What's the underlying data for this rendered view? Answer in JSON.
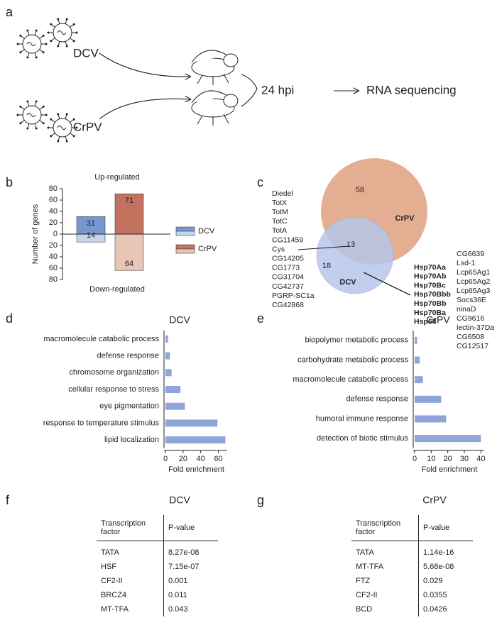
{
  "panel_labels": [
    "a",
    "b",
    "c",
    "d",
    "e",
    "f",
    "g"
  ],
  "schematic": {
    "viruses": [
      "DCV",
      "CrPV"
    ],
    "timepoint": "24 hpi",
    "method": "RNA sequencing"
  },
  "chart_data": [
    {
      "type": "diverging-bar",
      "ylabel": "Number of genes",
      "categories": [
        "Up-regulated",
        "Down-regulated"
      ],
      "series": [
        {
          "name": "DCV",
          "colors": [
            "#7797d0",
            "#c7d4ee"
          ],
          "values": [
            31,
            -14
          ],
          "value_labels": [
            "31",
            "14"
          ]
        },
        {
          "name": "CrPV",
          "colors": [
            "#c2735f",
            "#e9c5b5"
          ],
          "values": [
            71,
            -64
          ],
          "value_labels": [
            "71",
            "64"
          ]
        }
      ],
      "ylim": [
        -80,
        80
      ],
      "yticks": [
        80,
        60,
        40,
        20,
        0,
        {
          "value": -20,
          "label": "20"
        },
        {
          "value": -40,
          "label": "40"
        },
        {
          "value": -60,
          "label": "60"
        },
        {
          "value": -80,
          "label": "80"
        }
      ],
      "legend": "right"
    },
    {
      "type": "hbar",
      "title": "DCV",
      "xlabel": "Fold enrichment",
      "color": "#8fa5d9",
      "categories": [
        "macromolecule catabolic process",
        "defense response",
        "chromosome organization",
        "cellular response to stress",
        "eye pigmentation",
        "response to temperature stimulus",
        "lipid localization"
      ],
      "values": [
        3,
        5,
        7,
        17,
        22,
        59,
        68
      ],
      "xlim": [
        0,
        70
      ],
      "xticks": [
        0,
        20,
        40,
        60
      ]
    },
    {
      "type": "hbar",
      "title": "CrPV",
      "xlabel": "Fold enrichment",
      "color": "#8fa5d9",
      "categories": [
        "biopolymer metabolic process",
        "carbohydrate metabolic process",
        "macromolecule catabolic process",
        "defense response",
        "humoral immune response",
        "detection of biotic stimulus"
      ],
      "values": [
        1.5,
        3,
        5,
        16,
        19,
        40
      ],
      "xlim": [
        0,
        42
      ],
      "xticks": [
        0,
        10,
        20,
        30,
        40
      ]
    }
  ],
  "venn": {
    "sets": [
      {
        "name": "CrPV",
        "color": "#dfa07f",
        "count": 58
      },
      {
        "name": "DCV",
        "color": "#b7c6ea",
        "count": 18
      }
    ],
    "overlap": 13,
    "left_genes": [
      "Diedel",
      "TotX",
      "TotM",
      "TotC",
      "TotA",
      "CG11459",
      "Cys",
      "CG14205",
      "CG1773",
      "CG31704",
      "CG42737",
      "PGRP-SC1a",
      "CG42868"
    ],
    "bold_genes": [
      "Hsp70Aa",
      "Hsp70Ab",
      "Hsp70Bc",
      "Hsp70Bbb",
      "Hsp70Bb",
      "Hsp70Ba",
      "Hsp68"
    ],
    "right_genes": [
      "CG6639",
      "Lsd-1",
      "Lcp65Ag1",
      "Lcp65Ag2",
      "Lcp65Ag3",
      "Socs36E",
      "ninaD",
      "CG9616",
      "lectin-37Da",
      "CG6508",
      "CG12517"
    ]
  },
  "tables": [
    {
      "title": "DCV",
      "columns": [
        "Transcription factor",
        "P-value"
      ],
      "rows": [
        [
          "TATA",
          "8.27e-08"
        ],
        [
          "HSF",
          "7.15e-07"
        ],
        [
          "CF2-II",
          "0.001"
        ],
        [
          "BRCZ4",
          "0.011"
        ],
        [
          "MT-TFA",
          "0.043"
        ]
      ]
    },
    {
      "title": "CrPV",
      "columns": [
        "Transcription factor",
        "P-value"
      ],
      "rows": [
        [
          "TATA",
          "1.14e-16"
        ],
        [
          "MT-TFA",
          "5.68e-08"
        ],
        [
          "FTZ",
          "0.029"
        ],
        [
          "CF2-II",
          "0.0355"
        ],
        [
          "BCD",
          "0.0426"
        ]
      ]
    }
  ]
}
